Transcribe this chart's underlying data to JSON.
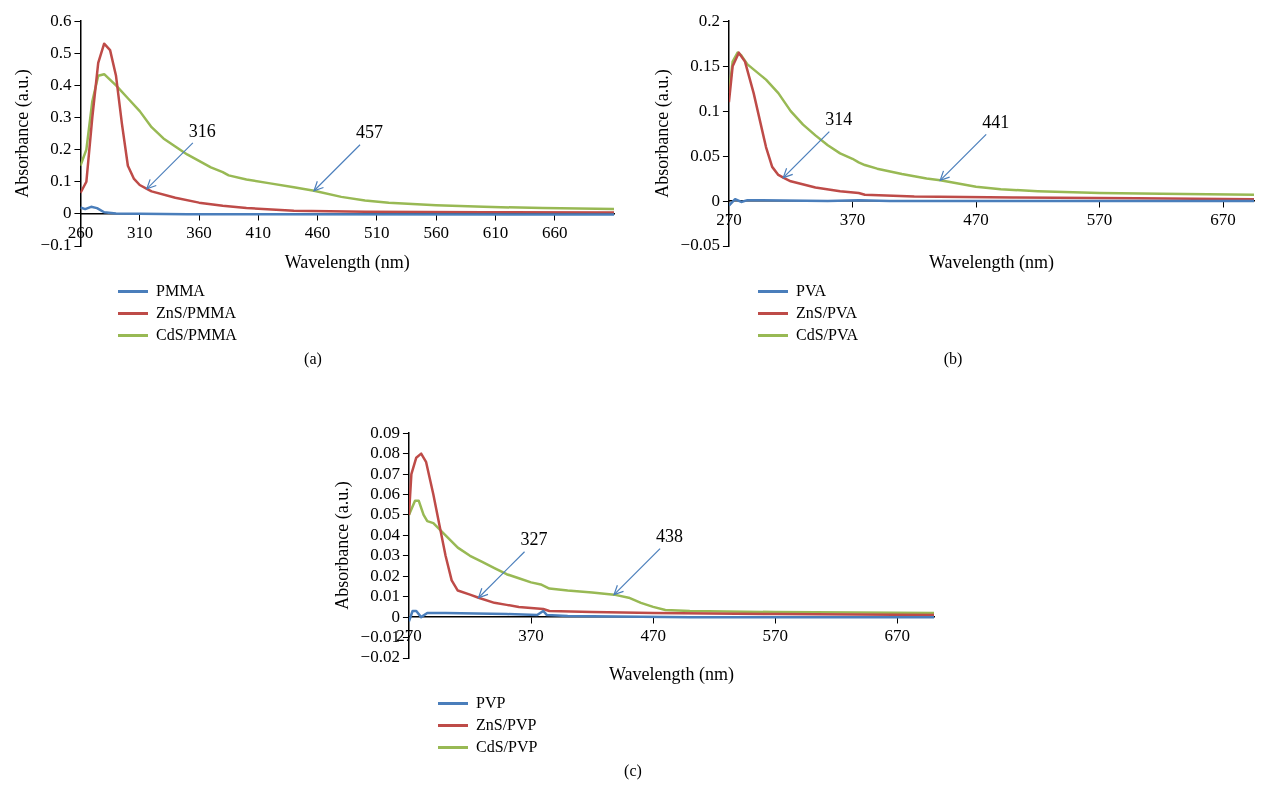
{
  "chart_data": [
    {
      "type": "line",
      "xlabel": "Wavelength (nm)",
      "ylabel": "Absorbance (a.u.)",
      "xlim": [
        260,
        710
      ],
      "xticks": [
        260,
        310,
        360,
        410,
        460,
        510,
        560,
        610,
        660
      ],
      "ylim": [
        -0.1,
        0.6
      ],
      "yticks": [
        {
          "value": -0.1,
          "label": "−0.1"
        },
        0,
        0.1,
        0.2,
        0.3,
        0.4,
        0.5,
        0.6
      ],
      "grid": false,
      "legend": "bottom",
      "marker": "none",
      "line_style": "solid",
      "series": [
        {
          "name": "PMMA",
          "color": "#4a7ebb",
          "x": [
            260,
            264,
            269,
            274,
            280,
            290,
            350,
            710
          ],
          "values": [
            0.02,
            0.015,
            0.022,
            0.018,
            0.005,
            0.001,
            -0.001,
            -0.002
          ]
        },
        {
          "name": "ZnS/PMMA",
          "color": "#be4b48",
          "x": [
            260,
            265,
            270,
            275,
            280,
            285,
            290,
            295,
            300,
            305,
            310,
            316,
            320,
            340,
            360,
            380,
            400,
            440,
            500,
            600,
            710
          ],
          "values": [
            0.065,
            0.1,
            0.3,
            0.47,
            0.53,
            0.51,
            0.43,
            0.28,
            0.15,
            0.11,
            0.09,
            0.078,
            0.07,
            0.05,
            0.035,
            0.025,
            0.018,
            0.01,
            0.007,
            0.005,
            0.004
          ]
        },
        {
          "name": "CdS/PMMA",
          "color": "#98b954",
          "x": [
            260,
            265,
            270,
            275,
            280,
            290,
            300,
            310,
            320,
            330,
            340,
            350,
            360,
            370,
            380,
            385,
            400,
            420,
            440,
            457,
            480,
            500,
            520,
            560,
            600,
            650,
            710
          ],
          "values": [
            0.15,
            0.2,
            0.35,
            0.43,
            0.435,
            0.4,
            0.36,
            0.32,
            0.27,
            0.235,
            0.21,
            0.185,
            0.165,
            0.145,
            0.13,
            0.12,
            0.107,
            0.095,
            0.083,
            0.072,
            0.053,
            0.042,
            0.035,
            0.027,
            0.022,
            0.018,
            0.015
          ]
        }
      ],
      "annotations": [
        {
          "text": "316",
          "x": 316,
          "y": 0.078
        },
        {
          "text": "457",
          "x": 457,
          "y": 0.072
        },
        "(a)"
      ]
    },
    {
      "type": "line",
      "xlabel": "Wavelength (nm)",
      "ylabel": "Absorbance (a.u.)",
      "xlim": [
        270,
        695
      ],
      "xticks": [
        270,
        370,
        470,
        570,
        670
      ],
      "ylim": [
        -0.05,
        0.2
      ],
      "yticks": [
        {
          "value": -0.05,
          "label": "−0.05"
        },
        0,
        0.05,
        0.1,
        0.15,
        0.2
      ],
      "grid": false,
      "legend": "bottom",
      "marker": "none",
      "line_style": "solid",
      "series": [
        {
          "name": "PVA",
          "color": "#4a7ebb",
          "x": [
            270,
            275,
            280,
            285,
            350,
            375,
            400,
            695
          ],
          "values": [
            -0.005,
            0.002,
            -0.001,
            0.001,
            0,
            0.001,
            0,
            0
          ]
        },
        {
          "name": "ZnS/PVA",
          "color": "#be4b48",
          "x": [
            270,
            273,
            278,
            283,
            290,
            295,
            300,
            305,
            310,
            314,
            320,
            340,
            360,
            375,
            380,
            420,
            500,
            600,
            695
          ],
          "values": [
            0.11,
            0.15,
            0.165,
            0.155,
            0.12,
            0.09,
            0.06,
            0.038,
            0.029,
            0.026,
            0.022,
            0.015,
            0.011,
            0.009,
            0.007,
            0.005,
            0.004,
            0.003,
            0.002
          ]
        },
        {
          "name": "CdS/PVA",
          "color": "#98b954",
          "x": [
            270,
            273,
            277,
            280,
            285,
            300,
            310,
            320,
            330,
            340,
            350,
            360,
            370,
            375,
            380,
            390,
            410,
            430,
            441,
            450,
            470,
            490,
            520,
            570,
            620,
            695
          ],
          "values": [
            0.12,
            0.155,
            0.165,
            0.162,
            0.152,
            0.135,
            0.12,
            0.1,
            0.085,
            0.073,
            0.062,
            0.053,
            0.047,
            0.043,
            0.04,
            0.036,
            0.03,
            0.025,
            0.023,
            0.021,
            0.016,
            0.013,
            0.011,
            0.009,
            0.008,
            0.007
          ]
        }
      ],
      "annotations": [
        {
          "text": "314",
          "x": 314,
          "y": 0.026
        },
        {
          "text": "441",
          "x": 441,
          "y": 0.023
        },
        "(b)"
      ]
    },
    {
      "type": "line",
      "xlabel": "Wavelength (nm)",
      "ylabel": "Absorbance (a.u.)",
      "xlim": [
        270,
        700
      ],
      "xticks": [
        270,
        370,
        470,
        570,
        670
      ],
      "ylim": [
        -0.02,
        0.09
      ],
      "yticks": [
        {
          "value": -0.02,
          "label": "−0.02"
        },
        {
          "value": -0.01,
          "label": "−0.01"
        },
        0,
        0.01,
        0.02,
        0.03,
        0.04,
        0.05,
        0.06,
        0.07,
        0.08,
        0.09
      ],
      "grid": false,
      "legend": "bottom",
      "marker": "none",
      "line_style": "solid",
      "series": [
        {
          "name": "PVP",
          "color": "#4a7ebb",
          "x": [
            270,
            273,
            276,
            280,
            285,
            300,
            350,
            375,
            380,
            383,
            400,
            500,
            700
          ],
          "values": [
            -0.002,
            0.003,
            0.003,
            0,
            0.002,
            0.002,
            0.0015,
            0.001,
            0.003,
            0.001,
            0.0005,
            0,
            0
          ]
        },
        {
          "name": "ZnS/PVP",
          "color": "#be4b48",
          "x": [
            270,
            272,
            276,
            280,
            284,
            290,
            295,
            300,
            305,
            310,
            320,
            327,
            340,
            350,
            360,
            370,
            380,
            385,
            420,
            470,
            570,
            700
          ],
          "values": [
            0.05,
            0.07,
            0.078,
            0.08,
            0.076,
            0.06,
            0.045,
            0.03,
            0.018,
            0.013,
            0.011,
            0.0095,
            0.007,
            0.006,
            0.005,
            0.0045,
            0.004,
            0.003,
            0.0025,
            0.002,
            0.0015,
            0.001
          ]
        },
        {
          "name": "CdS/PVP",
          "color": "#98b954",
          "x": [
            270,
            275,
            278,
            282,
            285,
            290,
            300,
            310,
            320,
            330,
            340,
            350,
            360,
            370,
            378,
            385,
            400,
            420,
            438,
            450,
            460,
            470,
            480,
            500,
            570,
            700
          ],
          "values": [
            0.05,
            0.057,
            0.057,
            0.05,
            0.047,
            0.046,
            0.04,
            0.034,
            0.03,
            0.027,
            0.024,
            0.021,
            0.019,
            0.017,
            0.016,
            0.014,
            0.013,
            0.012,
            0.011,
            0.0095,
            0.007,
            0.005,
            0.0035,
            0.003,
            0.0025,
            0.002
          ]
        }
      ],
      "annotations": [
        {
          "text": "327",
          "x": 327,
          "y": 0.0095
        },
        {
          "text": "438",
          "x": 438,
          "y": 0.011
        },
        "(c)"
      ]
    }
  ]
}
